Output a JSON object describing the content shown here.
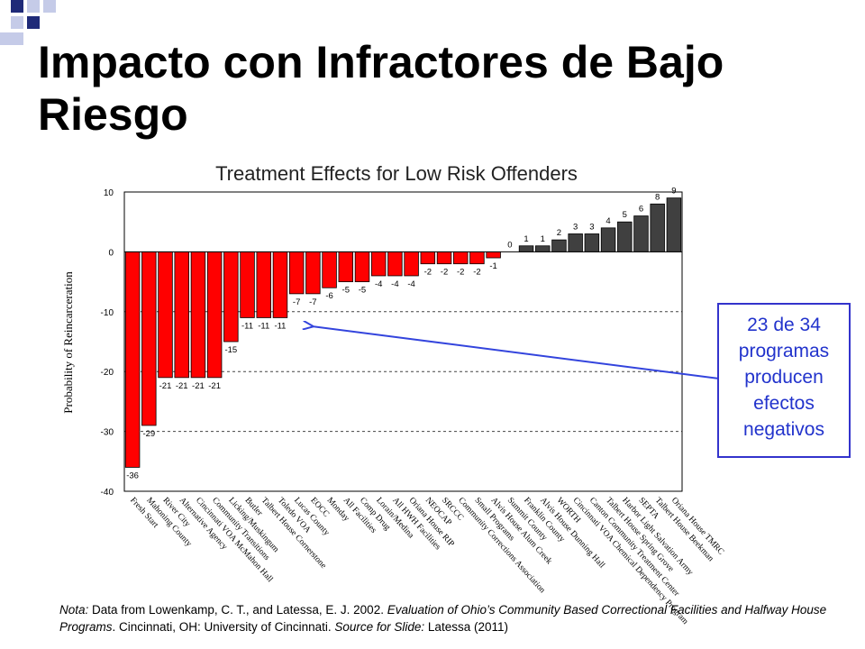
{
  "slide": {
    "title": "Impacto con Infractores de Bajo Riesgo",
    "callout_lines": [
      "23 de 34",
      "programas",
      "producen",
      "efectos",
      "negativos"
    ],
    "note": {
      "label": "Nota:",
      "part1": " Data from Lowenkamp, C. T., and Latessa, E. J. 2002. ",
      "italic1": "Evaluation of Ohio’s Community Based Correctional Facilities and Halfway House Programs",
      "part2": ". Cincinnati, OH: University of Cincinnati. ",
      "italic2": "Source for Slide:",
      "part3": " Latessa (2011)"
    },
    "colors": {
      "negative_bar": "#ff0000",
      "positive_bar": "#404040",
      "title_text": "#000000",
      "callout_text": "#2233cc",
      "arrow": "#3344dd",
      "deco_dark": "#1f2a78",
      "deco_light": "#c5cbe8"
    }
  },
  "chart_data": {
    "type": "bar",
    "title": "Treatment Effects for Low Risk Offenders",
    "xlabel": "",
    "ylabel": "Probability of Reincarceration",
    "ylim": [
      -40,
      10
    ],
    "yticks": [
      10,
      0,
      -10,
      -20,
      -30,
      -40
    ],
    "grid": "dashed horizontal at -10, -20, -30",
    "categories": [
      "Fresh Start",
      "Mahoning County",
      "River City",
      "Alternative Agency",
      "Cincinnati VOA McMahon Hall",
      "Community Transitions",
      "Licking/Muskingum",
      "Butler",
      "Talbert House Cornerstone",
      "Toledo VOA",
      "Lucas County",
      "EOCC",
      "Monday",
      "All Facilities",
      "Comp Drug",
      "Lorain/Medina",
      "All HWH Facilities",
      "Oriana House RIP",
      "NEOCAP",
      "SRCCC",
      "Community Corrections Association",
      "Small Programs",
      "Alvis House Alum Creek",
      "Summit County",
      "Franklin County",
      "Alvis House Dunning Hall",
      "WORTH",
      "Cincinnati VOA Chemical Dependency Program",
      "Canton Community Treatment Center",
      "Talbert House Spring Grove",
      "Harbor Light Salvation Army",
      "SEPTA",
      "Talbert House Beekman",
      "Oriana House TMRC"
    ],
    "values": [
      -36,
      -29,
      -21,
      -21,
      -21,
      -21,
      -15,
      -11,
      -11,
      -11,
      -7,
      -7,
      -6,
      -5,
      -5,
      -4,
      -4,
      -4,
      -2,
      -2,
      -2,
      -2,
      -1,
      0,
      1,
      1,
      2,
      3,
      3,
      4,
      5,
      6,
      8,
      9
    ],
    "data_labels": [
      "-36",
      "-29",
      "-21",
      "-21",
      "-21",
      "-21",
      "-15",
      "-11",
      "-11",
      "-11",
      "-7",
      "-7",
      "-6",
      "-5",
      "-5",
      "-4",
      "-4",
      "-4",
      "-2",
      "-2",
      "-2",
      "-2",
      "-1",
      "0",
      "1",
      "1",
      "2",
      "3",
      "3",
      "4",
      "5",
      "6",
      "8",
      "9"
    ]
  }
}
